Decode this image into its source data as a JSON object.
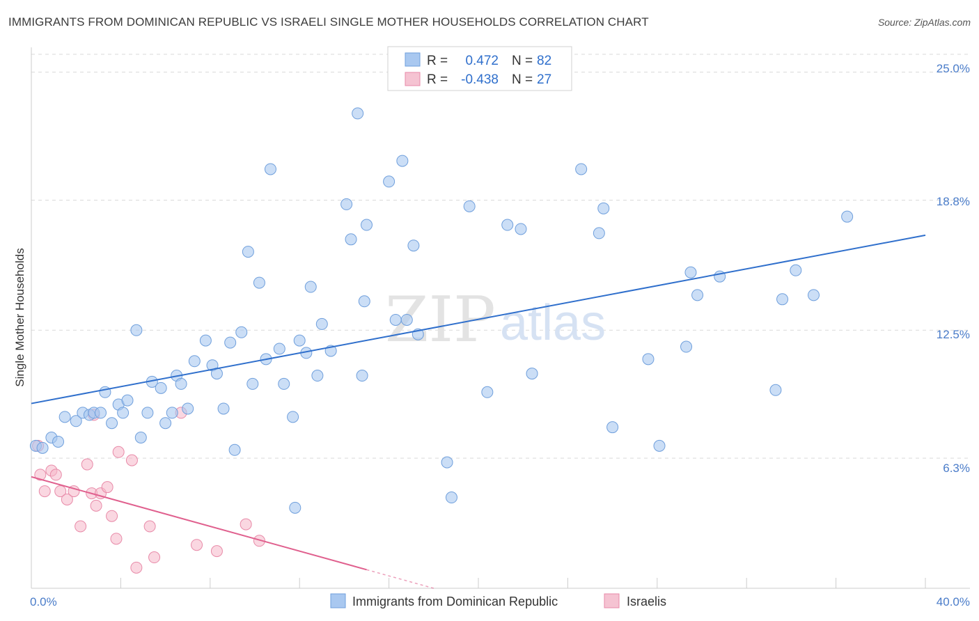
{
  "title": "IMMIGRANTS FROM DOMINICAN REPUBLIC VS ISRAELI SINGLE MOTHER HOUSEHOLDS CORRELATION CHART",
  "source": "Source: ZipAtlas.com",
  "watermark": {
    "zip": "ZIP",
    "atlas": "atlas"
  },
  "colors": {
    "blue_fill": "#a9c8f0",
    "blue_stroke": "#6f9fdc",
    "blue_line": "#2f6fcc",
    "pink_fill": "#f5b6c8",
    "pink_stroke": "#e88aa8",
    "pink_line": "#e0608e",
    "tick_text": "#4a7cc9",
    "grid": "#d9d9d9"
  },
  "legend": {
    "rows": [
      {
        "r_label": "R =",
        "r_value": "0.472",
        "n_label": "N =",
        "n_value": "82"
      },
      {
        "r_label": "R =",
        "r_value": "-0.438",
        "n_label": "N =",
        "n_value": "27"
      }
    ]
  },
  "chart_data": {
    "type": "scatter",
    "xlabel": "",
    "ylabel": "Single Mother Households",
    "xlim": [
      0,
      40
    ],
    "ylim": [
      0,
      26.2
    ],
    "x_tick_labels": [
      "0.0%",
      "40.0%"
    ],
    "y_ticks": [
      6.3,
      12.5,
      18.8,
      25.0
    ],
    "y_tick_labels": [
      "6.3%",
      "12.5%",
      "18.8%",
      "25.0%"
    ],
    "grid": "horizontal dashed",
    "legend_position": "top-center",
    "series": [
      {
        "name": "Immigrants from Dominican Republic",
        "color": "#a9c8f0",
        "points": [
          [
            0.2,
            6.9
          ],
          [
            0.5,
            6.8
          ],
          [
            0.9,
            7.3
          ],
          [
            1.2,
            7.1
          ],
          [
            1.5,
            8.3
          ],
          [
            2.0,
            8.1
          ],
          [
            2.3,
            8.5
          ],
          [
            2.6,
            8.4
          ],
          [
            2.8,
            8.5
          ],
          [
            3.1,
            8.5
          ],
          [
            3.3,
            9.5
          ],
          [
            3.6,
            8.0
          ],
          [
            3.9,
            8.9
          ],
          [
            4.1,
            8.5
          ],
          [
            4.3,
            9.1
          ],
          [
            4.7,
            12.5
          ],
          [
            4.9,
            7.3
          ],
          [
            5.2,
            8.5
          ],
          [
            5.4,
            10.0
          ],
          [
            5.8,
            9.7
          ],
          [
            6.0,
            8.0
          ],
          [
            6.3,
            8.5
          ],
          [
            6.5,
            10.3
          ],
          [
            6.7,
            9.9
          ],
          [
            7.0,
            8.7
          ],
          [
            7.3,
            11.0
          ],
          [
            7.8,
            12.0
          ],
          [
            8.1,
            10.8
          ],
          [
            8.3,
            10.4
          ],
          [
            8.6,
            8.7
          ],
          [
            8.9,
            11.9
          ],
          [
            9.1,
            6.7
          ],
          [
            9.4,
            12.4
          ],
          [
            9.7,
            16.3
          ],
          [
            9.9,
            9.9
          ],
          [
            10.2,
            14.8
          ],
          [
            10.5,
            11.1
          ],
          [
            10.7,
            20.3
          ],
          [
            11.1,
            11.6
          ],
          [
            11.3,
            9.9
          ],
          [
            11.7,
            8.3
          ],
          [
            11.8,
            3.9
          ],
          [
            12.3,
            11.4
          ],
          [
            12.5,
            14.6
          ],
          [
            12.8,
            10.3
          ],
          [
            13.0,
            12.8
          ],
          [
            13.4,
            11.5
          ],
          [
            14.1,
            18.6
          ],
          [
            14.3,
            16.9
          ],
          [
            14.8,
            10.3
          ],
          [
            14.6,
            23.0
          ],
          [
            14.9,
            13.9
          ],
          [
            15.0,
            17.6
          ],
          [
            16.0,
            19.7
          ],
          [
            16.3,
            13.0
          ],
          [
            16.6,
            20.7
          ],
          [
            17.1,
            16.6
          ],
          [
            17.3,
            12.3
          ],
          [
            18.6,
            6.1
          ],
          [
            18.8,
            4.4
          ],
          [
            19.6,
            18.5
          ],
          [
            20.4,
            9.5
          ],
          [
            21.3,
            17.6
          ],
          [
            21.9,
            17.4
          ],
          [
            22.4,
            10.4
          ],
          [
            24.6,
            20.3
          ],
          [
            25.4,
            17.2
          ],
          [
            25.6,
            18.4
          ],
          [
            26.0,
            7.8
          ],
          [
            27.6,
            11.1
          ],
          [
            28.1,
            6.9
          ],
          [
            29.3,
            11.7
          ],
          [
            29.5,
            15.3
          ],
          [
            29.8,
            14.2
          ],
          [
            30.8,
            15.1
          ],
          [
            33.3,
            9.6
          ],
          [
            33.6,
            14.0
          ],
          [
            34.2,
            15.4
          ],
          [
            35.0,
            14.2
          ],
          [
            36.5,
            18.0
          ],
          [
            16.8,
            13.0
          ],
          [
            12.0,
            12.0
          ]
        ],
        "trend": [
          [
            0,
            8.95
          ],
          [
            40,
            17.1
          ]
        ]
      },
      {
        "name": "Israelis",
        "color": "#f5b6c8",
        "points": [
          [
            0.3,
            6.9
          ],
          [
            0.4,
            5.5
          ],
          [
            0.6,
            4.7
          ],
          [
            0.9,
            5.7
          ],
          [
            1.1,
            5.5
          ],
          [
            1.3,
            4.7
          ],
          [
            1.6,
            4.3
          ],
          [
            1.9,
            4.7
          ],
          [
            2.2,
            3.0
          ],
          [
            2.5,
            6.0
          ],
          [
            2.7,
            4.6
          ],
          [
            2.8,
            8.4
          ],
          [
            2.9,
            4.0
          ],
          [
            3.1,
            4.6
          ],
          [
            3.4,
            4.9
          ],
          [
            3.6,
            3.5
          ],
          [
            3.8,
            2.4
          ],
          [
            3.9,
            6.6
          ],
          [
            4.5,
            6.2
          ],
          [
            4.7,
            1.0
          ],
          [
            5.3,
            3.0
          ],
          [
            5.5,
            1.5
          ],
          [
            6.7,
            8.5
          ],
          [
            7.4,
            2.1
          ],
          [
            8.3,
            1.8
          ],
          [
            9.6,
            3.1
          ],
          [
            10.2,
            2.3
          ]
        ],
        "trend": [
          [
            0,
            5.4
          ],
          [
            15,
            0.9
          ]
        ],
        "trend_extension": [
          [
            15,
            0.9
          ],
          [
            18,
            0.0
          ]
        ]
      }
    ]
  }
}
